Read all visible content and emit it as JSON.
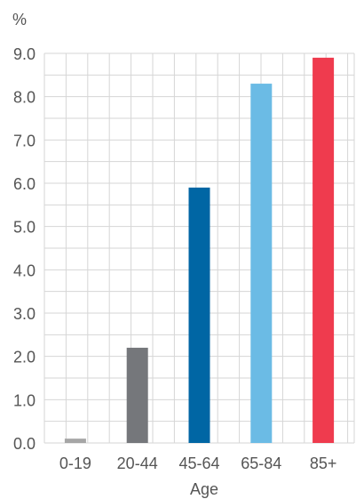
{
  "chart_data": {
    "type": "bar",
    "unit_label": "%",
    "xlabel": "Age",
    "ylabel": "",
    "categories": [
      "0-19",
      "20-44",
      "45-64",
      "65-84",
      "85+"
    ],
    "values": [
      0.1,
      2.2,
      5.9,
      8.3,
      8.9
    ],
    "colors": [
      "#a6a6a6",
      "#75777b",
      "#0066a4",
      "#6bbbe5",
      "#ef3b4e"
    ],
    "ylim": [
      0,
      9
    ],
    "yticks": [
      "0.0",
      "1.0",
      "2.0",
      "3.0",
      "4.0",
      "5.0",
      "6.0",
      "7.0",
      "8.0",
      "9.0"
    ],
    "grid": true,
    "legend": "none"
  }
}
